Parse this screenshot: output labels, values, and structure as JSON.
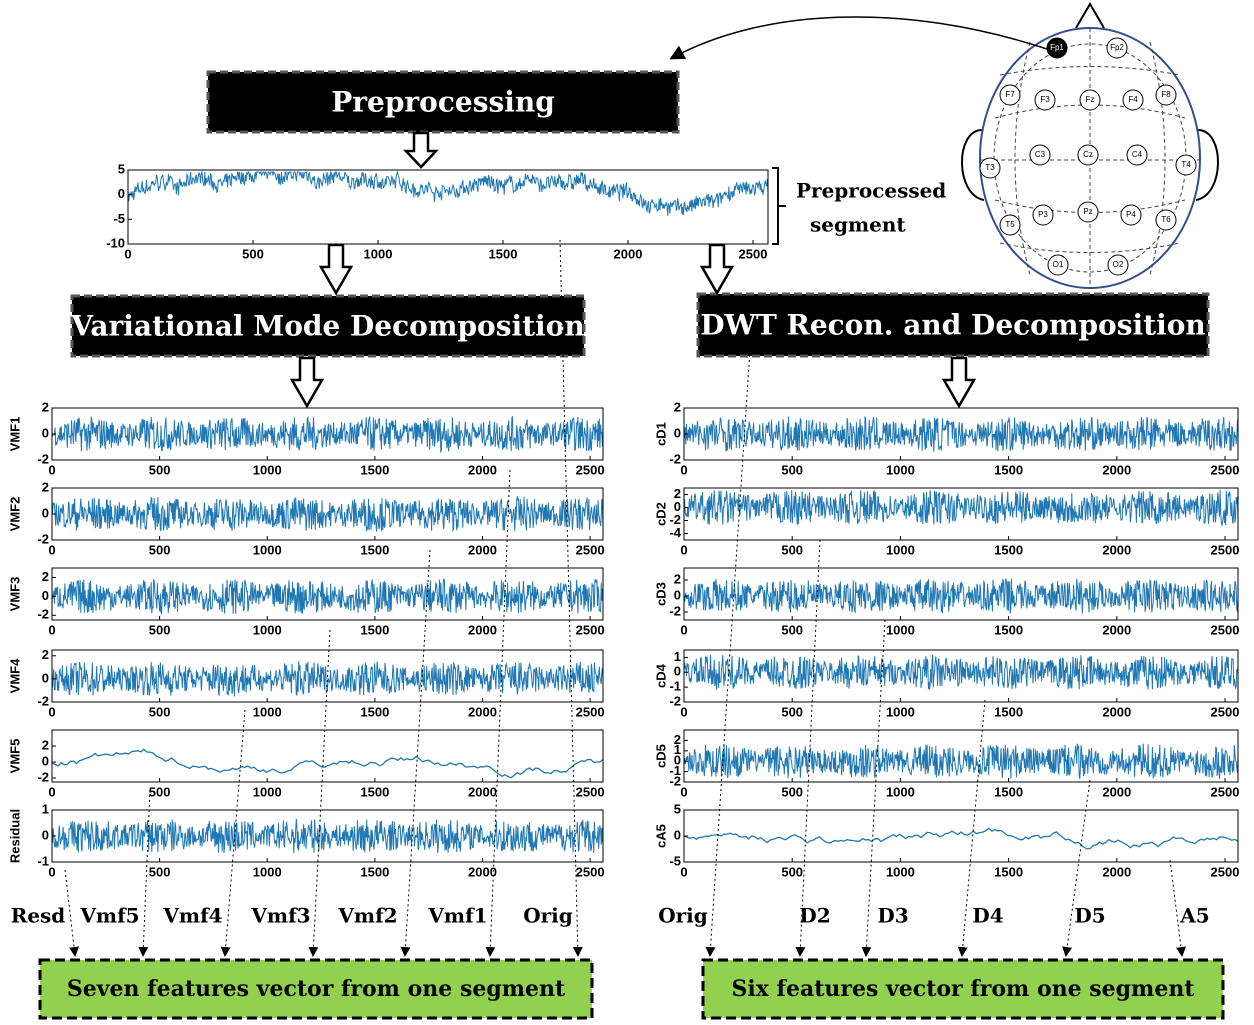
{
  "boxes": {
    "preprocessing": "Preprocessing",
    "vmd": "Variational Mode Decomposition",
    "dwt": "DWT Recon. and Decomposition",
    "seven": "Seven features vector from one segment",
    "six": "Six features vector from one segment"
  },
  "preprocessed_label": [
    "Preprocessed",
    "segment"
  ],
  "plot_xlim": [
    0,
    2560
  ],
  "plot_xticks": [
    0,
    500,
    1000,
    1500,
    2000,
    2500
  ],
  "main_plot": {
    "ylim": [
      -10,
      5
    ],
    "yticks": [
      5,
      0,
      -5,
      -10
    ]
  },
  "left_plots": [
    {
      "ylabel": "VMF1",
      "ylim": [
        -2,
        2
      ],
      "yticks": [
        2,
        0,
        -2
      ]
    },
    {
      "ylabel": "VMF2",
      "ylim": [
        -2,
        2
      ],
      "yticks": [
        2,
        0,
        -2
      ]
    },
    {
      "ylabel": "VMF3",
      "ylim": [
        -2.5,
        3
      ],
      "yticks": [
        2,
        0,
        -2
      ]
    },
    {
      "ylabel": "VMF4",
      "ylim": [
        -2,
        2.5
      ],
      "yticks": [
        2,
        0,
        -2
      ]
    },
    {
      "ylabel": "VMF5",
      "ylim": [
        -2.5,
        4
      ],
      "yticks": [
        2,
        0,
        -2
      ]
    },
    {
      "ylabel": "Residual",
      "ylim": [
        -1,
        1
      ],
      "yticks": [
        1,
        0,
        -1
      ]
    }
  ],
  "right_plots": [
    {
      "ylabel": "cD1",
      "ylim": [
        -2,
        2
      ],
      "yticks": [
        2,
        0,
        -2
      ]
    },
    {
      "ylabel": "cD2",
      "ylim": [
        -5,
        3
      ],
      "yticks": [
        2,
        0,
        -2,
        -4
      ]
    },
    {
      "ylabel": "cD3",
      "ylim": [
        -3,
        3.5
      ],
      "yticks": [
        2,
        0,
        -2
      ]
    },
    {
      "ylabel": "cD4",
      "ylim": [
        -2,
        1.5
      ],
      "yticks": [
        1,
        0,
        -1,
        -2
      ]
    },
    {
      "ylabel": "cD5",
      "ylim": [
        -2,
        3
      ],
      "yticks": [
        2,
        1,
        0,
        -1,
        -2
      ]
    },
    {
      "ylabel": "cA5",
      "ylim": [
        -5,
        5
      ],
      "yticks": [
        5,
        0,
        -5
      ]
    }
  ],
  "left_features": [
    "Resd",
    "Vmf5",
    "Vmf4",
    "Vmf3",
    "Vmf2",
    "Vmf1",
    "Orig"
  ],
  "right_features": [
    "Orig",
    "D2",
    "D3",
    "D4",
    "D5",
    "A5"
  ],
  "electrodes": [
    "Fp1",
    "Fp2",
    "F7",
    "F3",
    "Fz",
    "F4",
    "F8",
    "T3",
    "C3",
    "Cz",
    "C4",
    "T4",
    "T5",
    "P3",
    "Pz",
    "P4",
    "T6",
    "O1",
    "O2"
  ]
}
